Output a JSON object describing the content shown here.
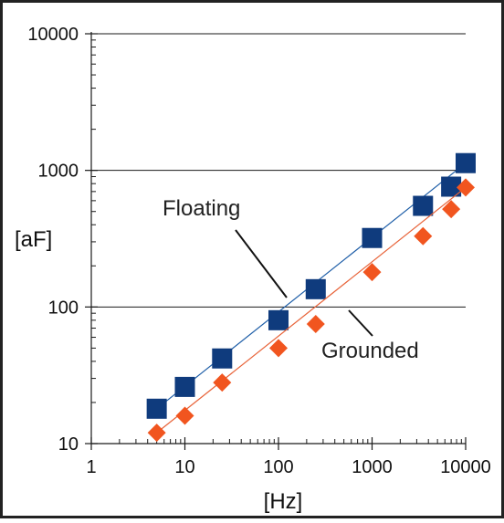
{
  "chart_data": {
    "type": "scatter",
    "xlabel": "[Hz]",
    "ylabel": "[aF]",
    "x_scale": "log",
    "y_scale": "log",
    "xlim": [
      1,
      10000
    ],
    "ylim": [
      10,
      10000
    ],
    "x_ticks": [
      "1",
      "10",
      "100",
      "1000",
      "10000"
    ],
    "y_ticks": [
      "10",
      "100",
      "1000",
      "10000"
    ],
    "grid": "horizontal major gridlines",
    "series": [
      {
        "name": "Floating",
        "marker": "square",
        "color": "#0f3b7d",
        "line_color": "#1f5fa8",
        "x": [
          5,
          10,
          25,
          100,
          250,
          1000,
          3500,
          7000,
          10000
        ],
        "y": [
          18,
          26,
          42,
          80,
          135,
          320,
          550,
          760,
          1130
        ]
      },
      {
        "name": "Grounded",
        "marker": "diamond",
        "color": "#f1551f",
        "line_color": "#e8643a",
        "x": [
          5,
          10,
          25,
          100,
          250,
          1000,
          3500,
          7000,
          10000
        ],
        "y": [
          12,
          16,
          28,
          50,
          75,
          180,
          330,
          520,
          750
        ]
      }
    ]
  }
}
